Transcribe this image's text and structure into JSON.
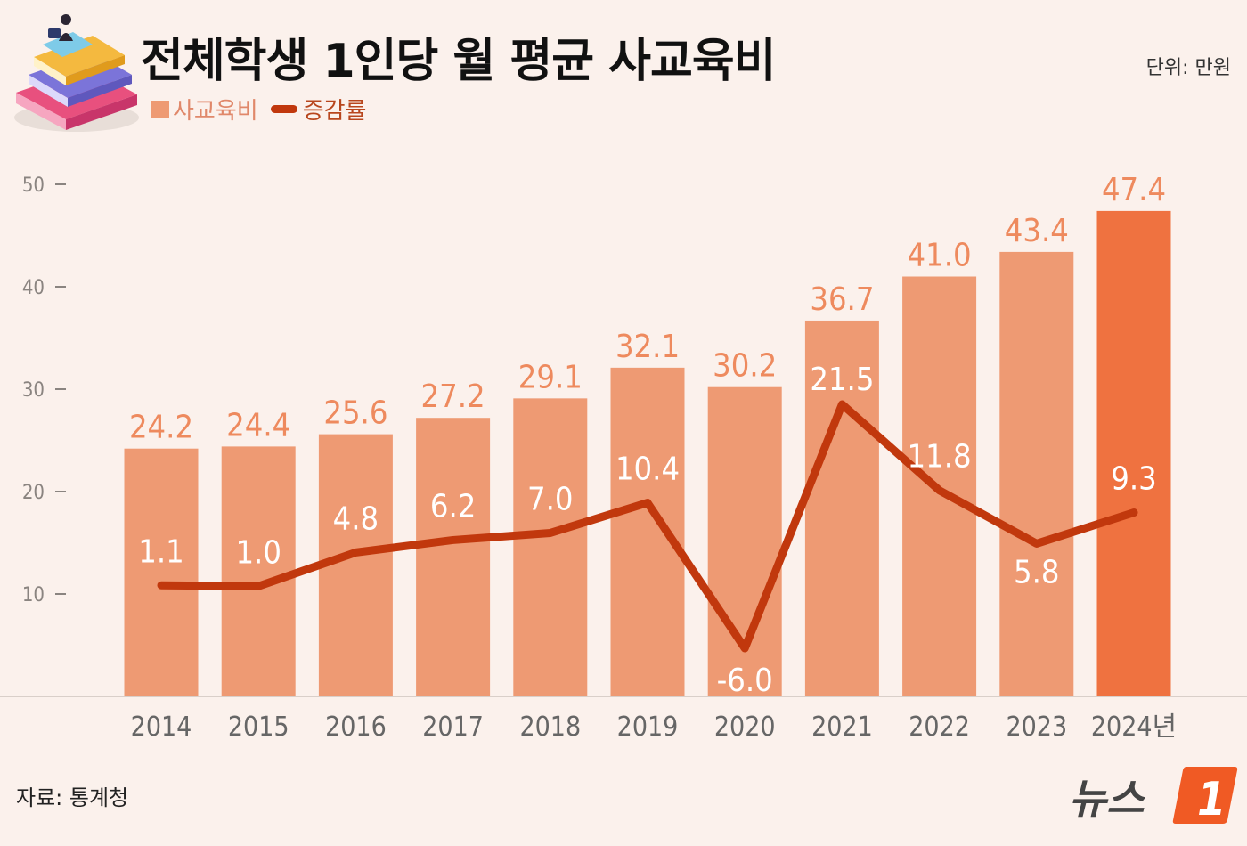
{
  "title": "전체학생 1인당 월 평균 사교육비",
  "unit": "단위: 만원",
  "source": "자료: 통계청",
  "logo_text": "뉴스",
  "logo_number": "1",
  "colors": {
    "bar": "#ee9a73",
    "bar_highlight": "#ef7240",
    "line": "#c1380d",
    "bar_label": "#ee8a5e",
    "line_label": "#ffffff",
    "background": "#fbf1ec"
  },
  "chart_data": {
    "type": "bar",
    "title": "전체학생 1인당 월 평균 사교육비",
    "categories": [
      "2014",
      "2015",
      "2016",
      "2017",
      "2018",
      "2019",
      "2020",
      "2021",
      "2022",
      "2023",
      "2024년"
    ],
    "series": [
      {
        "name": "사교육비",
        "type": "bar",
        "values": [
          24.2,
          24.4,
          25.6,
          27.2,
          29.1,
          32.1,
          30.2,
          36.7,
          41.0,
          43.4,
          47.4
        ],
        "labels": [
          "24.2",
          "24.4",
          "25.6",
          "27.2",
          "29.1",
          "32.1",
          "30.2",
          "36.7",
          "41.0",
          "43.4",
          "47.4"
        ]
      },
      {
        "name": "증감률",
        "type": "line",
        "values": [
          1.1,
          1.0,
          4.8,
          6.2,
          7.0,
          10.4,
          -6.0,
          21.5,
          11.8,
          5.8,
          9.3
        ],
        "labels": [
          "1.1",
          "1.0",
          "4.8",
          "6.2",
          "7.0",
          "10.4",
          "-6.0",
          "21.5",
          "11.8",
          "5.8",
          "9.3"
        ]
      }
    ],
    "y_ticks": [
      "10",
      "20",
      "30",
      "40",
      "50"
    ],
    "ylim": [
      0,
      50
    ],
    "legend_position": "top-left",
    "grid": false
  }
}
